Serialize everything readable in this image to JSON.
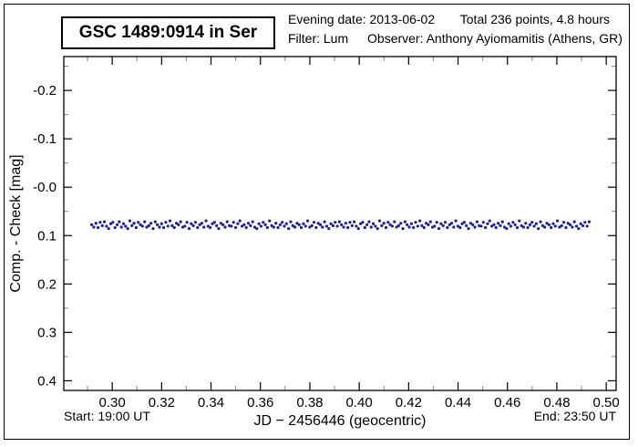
{
  "window": {
    "background": "#ffffff",
    "border_color": "#000000"
  },
  "header": {
    "title": "GSC 1489:0914 in Ser",
    "evening_date": "Evening date: 2013-06-02",
    "total_points": "Total 236 points, 4.8 hours",
    "filter": "Filter: Lum",
    "observer": "Observer: Anthony Ayiomamitis (Athens, GR)"
  },
  "footer": {
    "start": "Start: 19:00 UT",
    "end": "End: 23:50 UT"
  },
  "chart_data": {
    "type": "scatter",
    "title": "GSC 1489:0914 in Ser",
    "xlabel": "JD − 2456446  (geocentric)",
    "ylabel": "Comp. - Check [mag]",
    "xlim": [
      0.2804,
      0.504
    ],
    "ylim": [
      -0.27,
      0.42
    ],
    "y_axis_direction": "inverted-magnitude (smaller values at top)",
    "grid": false,
    "legend": "none",
    "frame_color": "#000000",
    "minor_tick_color": "#878787",
    "x_major_ticks": {
      "values": [
        0.3,
        0.32,
        0.34,
        0.36,
        0.38,
        0.4,
        0.42,
        0.44,
        0.46,
        0.48,
        0.5
      ],
      "labels": [
        "0.30",
        "0.32",
        "0.34",
        "0.36",
        "0.38",
        "0.40",
        "0.42",
        "0.44",
        "0.46",
        "0.48",
        "0.50"
      ]
    },
    "x_minor_ticks": [
      0.29,
      0.31,
      0.33,
      0.35,
      0.37,
      0.39,
      0.41,
      0.43,
      0.45,
      0.47,
      0.49
    ],
    "y_major_ticks": {
      "values": [
        -0.2,
        -0.1,
        0.0,
        0.1,
        0.2,
        0.3,
        0.4
      ],
      "labels": [
        "-0.2",
        "-0.1",
        "-0.0",
        "0.1",
        "0.2",
        "0.3",
        "0.4"
      ]
    },
    "y_minor_ticks": [
      -0.25,
      -0.15,
      -0.05,
      0.05,
      0.15,
      0.25,
      0.35
    ],
    "series": [
      {
        "name": "Comp - Check differential magnitude",
        "marker": "circle",
        "marker_color": "#1f1f9e",
        "marker_radius_px": 1.6,
        "n_points": 236,
        "x_start": 0.2917,
        "x_end": 0.4931,
        "y_mean": 0.0775,
        "y_offsets_millimag": [
          0,
          5,
          -3,
          6,
          -5,
          2,
          -6,
          3,
          8,
          -2,
          -5,
          6,
          0,
          -6,
          5,
          -2,
          3,
          8,
          -8,
          2,
          -3,
          6,
          -5,
          0,
          3,
          -6,
          5,
          2,
          -3,
          8,
          -6,
          0,
          5,
          -2,
          6,
          -5,
          3,
          -8,
          2,
          6,
          -3,
          0,
          -6,
          5,
          3,
          -5,
          8,
          -2,
          2,
          -5,
          6,
          0,
          -3,
          5,
          -8,
          3,
          6,
          -2,
          -5,
          2,
          8,
          -3,
          0,
          5,
          -6,
          2,
          3,
          -5,
          6,
          -2,
          -8,
          3,
          0,
          6,
          -3,
          2,
          -6,
          5,
          8,
          -2,
          3,
          -5,
          0,
          6,
          -8,
          2,
          5,
          -3,
          6,
          0,
          -5,
          3,
          -2,
          8,
          -6,
          2,
          5,
          -3,
          0,
          6,
          -2,
          3,
          -8,
          5,
          2,
          -5,
          6,
          -3,
          0,
          5,
          -6,
          3,
          8,
          -2,
          2,
          -5,
          3,
          -6
        ]
      }
    ]
  }
}
